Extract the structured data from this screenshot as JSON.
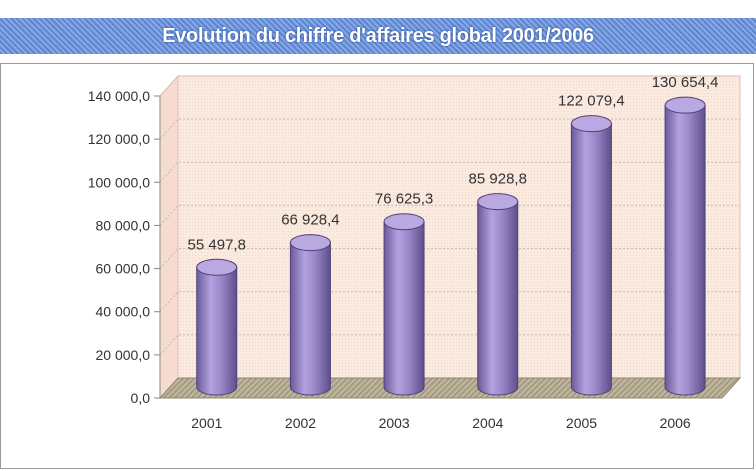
{
  "chart_data": {
    "type": "bar",
    "title": "Evolution du chiffre d'affaires global 2001/2006",
    "categories": [
      "2001",
      "2002",
      "2003",
      "2004",
      "2005",
      "2006"
    ],
    "values": [
      55497.8,
      66928.4,
      76625.3,
      85928.8,
      122079.4,
      130654.4
    ],
    "data_labels": [
      "55 497,8",
      "66 928,4",
      "76 625,3",
      "85 928,8",
      "122 079,4",
      "130 654,4"
    ],
    "yticks": [
      0,
      20000,
      40000,
      60000,
      80000,
      100000,
      120000,
      140000
    ],
    "ytick_labels": [
      "0,0",
      "20 000,0",
      "40 000,0",
      "60 000,0",
      "80 000,0",
      "100 000,0",
      "120 000,0",
      "140 000,0"
    ],
    "ylim": [
      0,
      140000
    ],
    "xlabel": "",
    "ylabel": "",
    "grid": true,
    "legend": "none",
    "colors": {
      "bar": "#9b88c9",
      "bar_dark": "#6a5a9a",
      "bar_top": "#b9a9e0",
      "wall": "#fbe8de",
      "floor": "#b7ad96",
      "title_band": "#6f93d8"
    }
  }
}
